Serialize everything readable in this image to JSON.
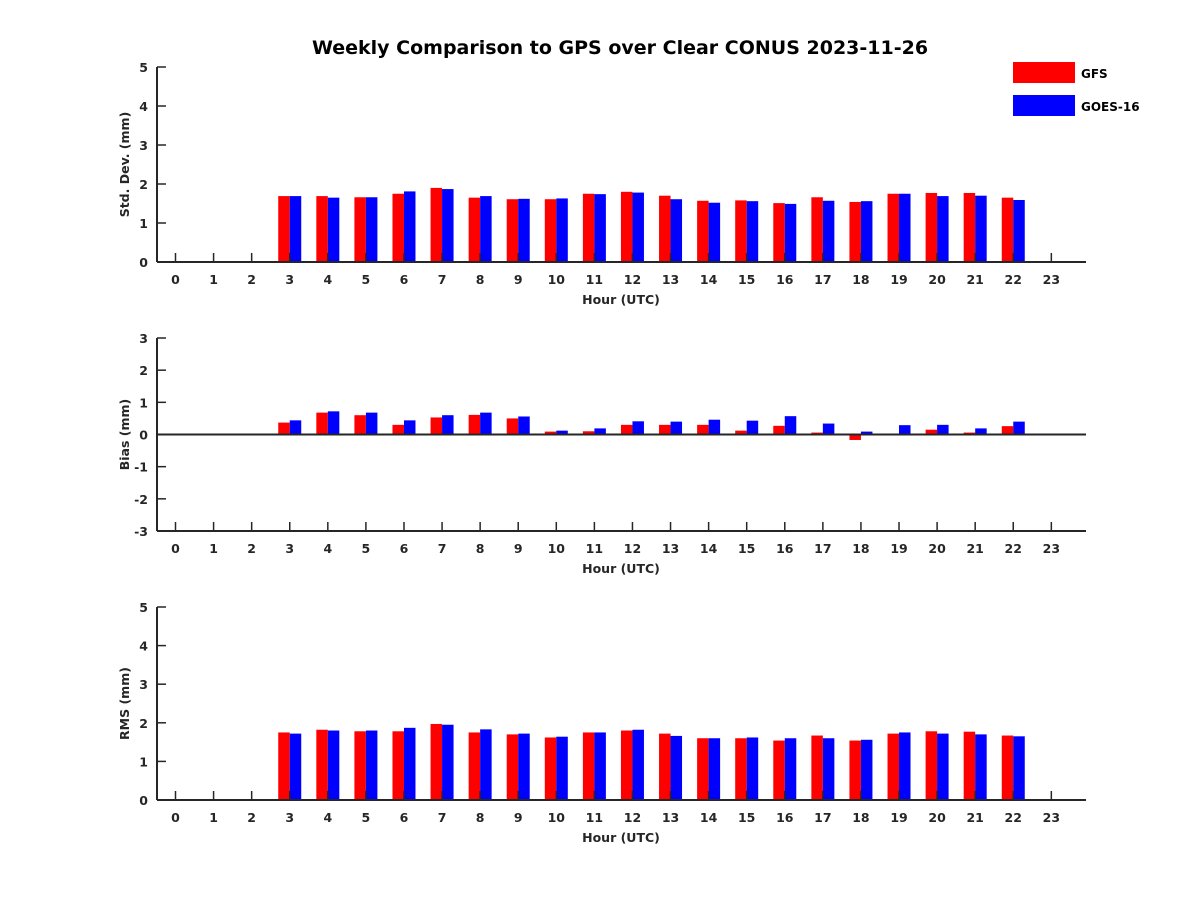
{
  "chart_data": {
    "type": "bar",
    "title": "Weekly Comparison to GPS over Clear CONUS 2023-11-26",
    "legend": {
      "placement": "top-right",
      "entries": [
        "GFS",
        "GOES-16"
      ]
    },
    "colors": {
      "GFS": "#ff0000",
      "GOES-16": "#0000ff",
      "axis": "#262626",
      "text": "#262626"
    },
    "categories": [
      "0",
      "1",
      "2",
      "3",
      "4",
      "5",
      "6",
      "7",
      "8",
      "9",
      "10",
      "11",
      "12",
      "13",
      "14",
      "15",
      "16",
      "17",
      "18",
      "19",
      "20",
      "21",
      "22",
      "23"
    ],
    "panels": [
      {
        "name": "std-dev",
        "ylabel": "Std. Dev. (mm)",
        "xlabel": "Hour (UTC)",
        "ylim": [
          0,
          5
        ],
        "yticks": [
          "0",
          "1",
          "2",
          "3",
          "4",
          "5"
        ],
        "series": [
          {
            "name": "GFS",
            "values": [
              null,
              null,
              null,
              1.69,
              1.69,
              1.66,
              1.75,
              1.9,
              1.65,
              1.61,
              1.61,
              1.75,
              1.8,
              1.7,
              1.57,
              1.58,
              1.51,
              1.66,
              1.54,
              1.75,
              1.77,
              1.77,
              1.65,
              null
            ]
          },
          {
            "name": "GOES-16",
            "values": [
              null,
              null,
              null,
              1.69,
              1.65,
              1.66,
              1.81,
              1.87,
              1.69,
              1.62,
              1.63,
              1.74,
              1.78,
              1.61,
              1.52,
              1.56,
              1.49,
              1.57,
              1.56,
              1.75,
              1.69,
              1.7,
              1.59,
              null
            ]
          }
        ]
      },
      {
        "name": "bias",
        "ylabel": "Bias (mm)",
        "xlabel": "Hour (UTC)",
        "ylim": [
          -3,
          3
        ],
        "yticks": [
          "-3",
          "-2",
          "-1",
          "0",
          "1",
          "2",
          "3"
        ],
        "series": [
          {
            "name": "GFS",
            "values": [
              null,
              null,
              null,
              0.37,
              0.68,
              0.6,
              0.3,
              0.53,
              0.61,
              0.5,
              0.09,
              0.1,
              0.3,
              0.3,
              0.3,
              0.12,
              0.27,
              0.06,
              -0.17,
              0.03,
              0.15,
              0.06,
              0.26,
              null
            ]
          },
          {
            "name": "GOES-16",
            "values": [
              null,
              null,
              null,
              0.44,
              0.72,
              0.68,
              0.44,
              0.6,
              0.68,
              0.56,
              0.12,
              0.19,
              0.41,
              0.4,
              0.46,
              0.43,
              0.57,
              0.34,
              0.09,
              0.29,
              0.3,
              0.19,
              0.4,
              null
            ]
          }
        ]
      },
      {
        "name": "rms",
        "ylabel": "RMS (mm)",
        "xlabel": "Hour (UTC)",
        "ylim": [
          0,
          5
        ],
        "yticks": [
          "0",
          "1",
          "2",
          "3",
          "4",
          "5"
        ],
        "series": [
          {
            "name": "GFS",
            "values": [
              null,
              null,
              null,
              1.75,
              1.82,
              1.78,
              1.78,
              1.97,
              1.75,
              1.7,
              1.62,
              1.75,
              1.8,
              1.72,
              1.6,
              1.6,
              1.54,
              1.67,
              1.54,
              1.72,
              1.78,
              1.77,
              1.67,
              null
            ]
          },
          {
            "name": "GOES-16",
            "values": [
              null,
              null,
              null,
              1.72,
              1.8,
              1.8,
              1.87,
              1.95,
              1.83,
              1.72,
              1.64,
              1.75,
              1.82,
              1.66,
              1.6,
              1.62,
              1.6,
              1.6,
              1.56,
              1.75,
              1.72,
              1.7,
              1.65,
              null
            ]
          }
        ]
      }
    ]
  }
}
